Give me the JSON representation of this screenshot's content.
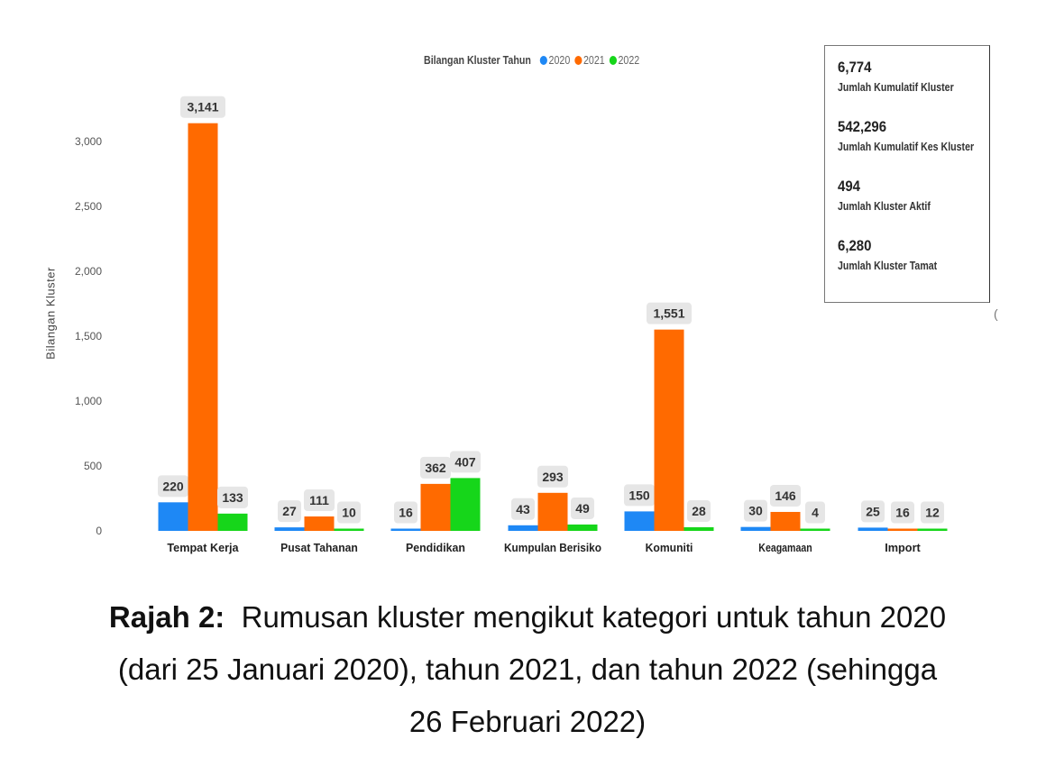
{
  "chart_data": {
    "type": "bar",
    "title": "Bilangan Kluster Tahun",
    "ylabel": "Bilangan Kluster",
    "xlabel": "",
    "ylim": [
      0,
      3300
    ],
    "yticks": [
      0,
      500,
      1000,
      1500,
      2000,
      2500,
      3000
    ],
    "ytick_labels": [
      "0",
      "500",
      "1,000",
      "1,500",
      "2,000",
      "2,500",
      "3,000"
    ],
    "categories": [
      "Tempat Kerja",
      "Pusat Tahanan",
      "Pendidikan",
      "Kumpulan Berisiko",
      "Komuniti",
      "Keagamaan",
      "Import"
    ],
    "series": [
      {
        "name": "2020",
        "color": "#1e88f5",
        "values": [
          220,
          27,
          16,
          43,
          150,
          30,
          25
        ],
        "labels": [
          "220",
          "27",
          "16",
          "43",
          "150",
          "30",
          "25"
        ]
      },
      {
        "name": "2021",
        "color": "#ff6a00",
        "values": [
          3141,
          111,
          362,
          293,
          1551,
          146,
          16
        ],
        "labels": [
          "3,141",
          "111",
          "362",
          "293",
          "1,551",
          "146",
          "16"
        ]
      },
      {
        "name": "2022",
        "color": "#16d61a",
        "values": [
          133,
          10,
          407,
          49,
          28,
          4,
          12
        ],
        "labels": [
          "133",
          "10",
          "407",
          "49",
          "28",
          "4",
          "12"
        ]
      }
    ]
  },
  "summary": [
    {
      "value": "6,774",
      "label": "Jumlah Kumulatif Kluster"
    },
    {
      "value": "542,296",
      "label": "Jumlah Kumulatif Kes Kluster"
    },
    {
      "value": "494",
      "label": "Jumlah Kluster Aktif"
    },
    {
      "value": "6,280",
      "label": "Jumlah Kluster Tamat"
    }
  ],
  "box_mark": "(",
  "caption": {
    "prefix": "Rajah 2:",
    "line1": "Rumusan kluster mengikut kategori untuk tahun 2020",
    "line2": "(dari 25 Januari 2020), tahun 2021, dan tahun 2022 (sehingga",
    "line3": "26 Februari 2022)"
  }
}
